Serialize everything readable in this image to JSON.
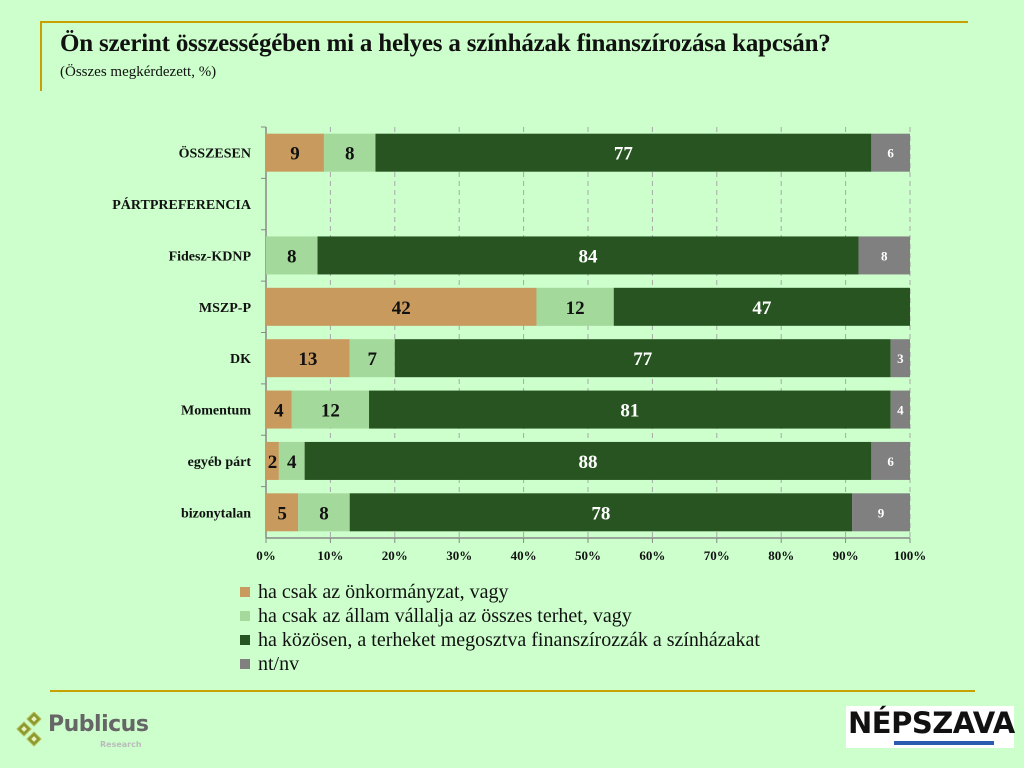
{
  "header": {
    "title": "Ön szerint összességében mi a helyes a színházak finanszírozása kapcsán?",
    "subtitle": "(Összes megkérdezett, %)"
  },
  "chart_data": {
    "type": "bar",
    "orientation": "horizontal",
    "stacked": true,
    "title": "Ön szerint összességében mi a helyes a színházak finanszírozása kapcsán?",
    "subtitle": "(Összes megkérdezett, %)",
    "xlabel": "",
    "ylabel": "",
    "xlim": [
      0,
      100
    ],
    "x_ticks": [
      "0%",
      "10%",
      "20%",
      "30%",
      "40%",
      "50%",
      "60%",
      "70%",
      "80%",
      "90%",
      "100%"
    ],
    "grid": true,
    "legend_position": "bottom",
    "categories": [
      "ÖSSZESEN",
      "PÁRTPREFERENCIA",
      "Fidesz-KDNP",
      "MSZP-P",
      "DK",
      "Momentum",
      "egyéb párt",
      "bizonytalan"
    ],
    "series": [
      {
        "name": "ha csak az önkormányzat, vagy",
        "color": "#c89a5e",
        "label_color": "#111111",
        "values": [
          9,
          null,
          0,
          42,
          13,
          4,
          2,
          5
        ]
      },
      {
        "name": "ha csak az állam vállalja az összes terhet, vagy",
        "color": "#a3d99b",
        "label_color": "#111111",
        "values": [
          8,
          null,
          8,
          12,
          7,
          12,
          4,
          8
        ]
      },
      {
        "name": "ha közösen, a terheket megosztva finanszírozzák a színházakat",
        "color": "#275420",
        "label_color": "#ffffff",
        "values": [
          77,
          null,
          84,
          47,
          77,
          81,
          88,
          78
        ]
      },
      {
        "name": "nt/nv",
        "color": "#808080",
        "label_color": "#ffffff",
        "values": [
          6,
          null,
          8,
          0,
          3,
          4,
          6,
          9
        ]
      }
    ]
  },
  "logos": {
    "publicus_name": "Publicus",
    "publicus_sub": "Research",
    "nepszava_name": "NÉPSZAVA"
  }
}
